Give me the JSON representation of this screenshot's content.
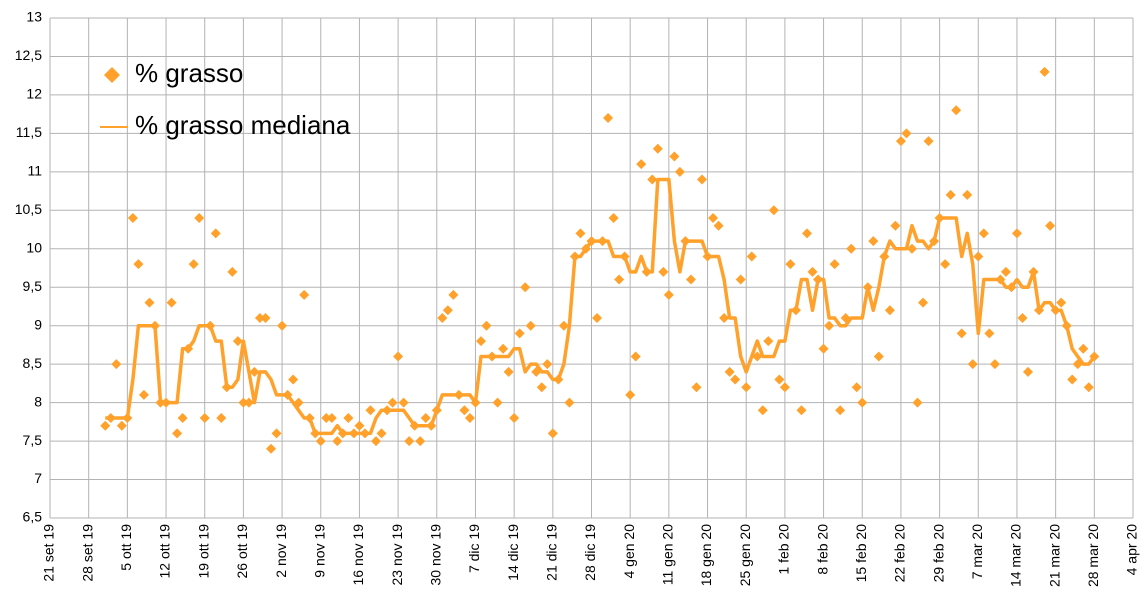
{
  "chart_data": {
    "type": "line",
    "x": [
      "2019-10-01",
      "2019-10-02",
      "2019-10-03",
      "2019-10-04",
      "2019-10-05",
      "2019-10-06",
      "2019-10-07",
      "2019-10-08",
      "2019-10-09",
      "2019-10-10",
      "2019-10-11",
      "2019-10-12",
      "2019-10-13",
      "2019-10-14",
      "2019-10-15",
      "2019-10-16",
      "2019-10-17",
      "2019-10-18",
      "2019-10-19",
      "2019-10-20",
      "2019-10-21",
      "2019-10-22",
      "2019-10-23",
      "2019-10-24",
      "2019-10-25",
      "2019-10-26",
      "2019-10-27",
      "2019-10-28",
      "2019-10-29",
      "2019-10-30",
      "2019-10-31",
      "2019-11-01",
      "2019-11-02",
      "2019-11-03",
      "2019-11-04",
      "2019-11-05",
      "2019-11-06",
      "2019-11-07",
      "2019-11-08",
      "2019-11-09",
      "2019-11-10",
      "2019-11-11",
      "2019-11-12",
      "2019-11-13",
      "2019-11-14",
      "2019-11-15",
      "2019-11-16",
      "2019-11-17",
      "2019-11-18",
      "2019-11-19",
      "2019-11-20",
      "2019-11-21",
      "2019-11-22",
      "2019-11-23",
      "2019-11-24",
      "2019-11-25",
      "2019-11-26",
      "2019-11-27",
      "2019-11-28",
      "2019-11-29",
      "2019-11-30",
      "2019-12-01",
      "2019-12-02",
      "2019-12-03",
      "2019-12-04",
      "2019-12-05",
      "2019-12-06",
      "2019-12-07",
      "2019-12-08",
      "2019-12-09",
      "2019-12-10",
      "2019-12-11",
      "2019-12-12",
      "2019-12-13",
      "2019-12-14",
      "2019-12-15",
      "2019-12-16",
      "2019-12-17",
      "2019-12-18",
      "2019-12-19",
      "2019-12-20",
      "2019-12-21",
      "2019-12-22",
      "2019-12-23",
      "2019-12-24",
      "2019-12-25",
      "2019-12-26",
      "2019-12-27",
      "2019-12-28",
      "2019-12-29",
      "2019-12-30",
      "2019-12-31",
      "2020-01-01",
      "2020-01-02",
      "2020-01-03",
      "2020-01-04",
      "2020-01-05",
      "2020-01-06",
      "2020-01-07",
      "2020-01-08",
      "2020-01-09",
      "2020-01-10",
      "2020-01-11",
      "2020-01-12",
      "2020-01-13",
      "2020-01-14",
      "2020-01-15",
      "2020-01-16",
      "2020-01-17",
      "2020-01-18",
      "2020-01-19",
      "2020-01-20",
      "2020-01-21",
      "2020-01-22",
      "2020-01-23",
      "2020-01-24",
      "2020-01-25",
      "2020-01-26",
      "2020-01-27",
      "2020-01-28",
      "2020-01-29",
      "2020-01-30",
      "2020-01-31",
      "2020-02-01",
      "2020-02-02",
      "2020-02-03",
      "2020-02-04",
      "2020-02-05",
      "2020-02-06",
      "2020-02-07",
      "2020-02-08",
      "2020-02-09",
      "2020-02-10",
      "2020-02-11",
      "2020-02-12",
      "2020-02-13",
      "2020-02-14",
      "2020-02-15",
      "2020-02-16",
      "2020-02-17",
      "2020-02-18",
      "2020-02-19",
      "2020-02-20",
      "2020-02-21",
      "2020-02-22",
      "2020-02-23",
      "2020-02-24",
      "2020-02-25",
      "2020-02-26",
      "2020-02-27",
      "2020-02-28",
      "2020-02-29",
      "2020-03-01",
      "2020-03-02",
      "2020-03-03",
      "2020-03-04",
      "2020-03-05",
      "2020-03-06",
      "2020-03-07",
      "2020-03-08",
      "2020-03-09",
      "2020-03-10",
      "2020-03-11",
      "2020-03-12",
      "2020-03-13",
      "2020-03-14",
      "2020-03-15",
      "2020-03-16",
      "2020-03-17",
      "2020-03-18",
      "2020-03-19",
      "2020-03-20",
      "2020-03-21",
      "2020-03-22",
      "2020-03-23",
      "2020-03-24",
      "2020-03-25",
      "2020-03-26",
      "2020-03-27",
      "2020-03-28"
    ],
    "series": [
      {
        "name": "% grasso",
        "type": "scatter",
        "color": "#ffa12b",
        "values": [
          7.7,
          7.8,
          8.5,
          7.7,
          7.8,
          10.4,
          9.8,
          8.1,
          9.3,
          9.0,
          8.0,
          8.0,
          9.3,
          7.6,
          7.8,
          8.7,
          9.8,
          10.4,
          7.8,
          9.0,
          10.2,
          7.8,
          8.2,
          9.7,
          8.8,
          8.0,
          8.0,
          8.4,
          9.1,
          9.1,
          7.4,
          7.6,
          9.0,
          8.1,
          8.3,
          8.0,
          9.4,
          7.8,
          7.6,
          7.5,
          7.8,
          7.8,
          7.5,
          7.6,
          7.8,
          7.6,
          7.7,
          7.6,
          7.9,
          7.5,
          7.6,
          7.9,
          8.0,
          8.6,
          8.0,
          7.5,
          7.7,
          7.5,
          7.8,
          7.7,
          7.9,
          9.1,
          9.2,
          9.4,
          8.1,
          7.9,
          7.8,
          8.0,
          8.8,
          9.0,
          8.6,
          8.0,
          8.7,
          8.4,
          7.8,
          8.9,
          9.5,
          9.0,
          8.4,
          8.2,
          8.5,
          7.6,
          8.3,
          9.0,
          8.0,
          9.9,
          10.2,
          10.0,
          10.1,
          9.1,
          10.1,
          11.7,
          10.4,
          9.6,
          9.9,
          8.1,
          8.6,
          11.1,
          9.7,
          10.9,
          11.3,
          9.7,
          9.4,
          11.2,
          11.0,
          10.1,
          9.6,
          8.2,
          10.9,
          9.9,
          10.4,
          10.3,
          9.1,
          8.4,
          8.3,
          9.6,
          8.2,
          9.9,
          8.6,
          7.9,
          8.8,
          10.5,
          8.3,
          8.2,
          9.8,
          9.2,
          7.9,
          10.2,
          9.7,
          9.6,
          8.7,
          9.0,
          9.8,
          7.9,
          9.1,
          10.0,
          8.2,
          8.0,
          9.5,
          10.1,
          8.6,
          9.9,
          9.2,
          10.3,
          11.4,
          11.5,
          10.0,
          8.0,
          9.3,
          11.4,
          10.1,
          10.4,
          9.8,
          10.7,
          11.8,
          8.9,
          10.7,
          8.5,
          9.9,
          10.2,
          8.9,
          8.5,
          9.6,
          9.7,
          9.5,
          10.2,
          9.1,
          8.4,
          9.7,
          9.2,
          12.3,
          10.3,
          9.2,
          9.3,
          9.0,
          8.3,
          8.5,
          8.7,
          8.2,
          8.6
        ]
      },
      {
        "name": "% grasso mediana",
        "type": "line",
        "color": "#ffa12b",
        "values": [
          7.8,
          7.8,
          7.8,
          7.8,
          7.8,
          8.3,
          9.0,
          9.0,
          9.0,
          9.0,
          8.0,
          8.0,
          8.0,
          8.0,
          8.7,
          8.7,
          8.8,
          9.0,
          9.0,
          9.0,
          8.8,
          8.8,
          8.2,
          8.2,
          8.3,
          8.8,
          8.4,
          8.0,
          8.4,
          8.4,
          8.3,
          8.1,
          8.1,
          8.1,
          8.0,
          7.9,
          7.8,
          7.8,
          7.6,
          7.6,
          7.6,
          7.6,
          7.7,
          7.6,
          7.6,
          7.6,
          7.6,
          7.6,
          7.6,
          7.8,
          7.9,
          7.9,
          7.9,
          7.9,
          7.9,
          7.8,
          7.7,
          7.7,
          7.7,
          7.7,
          7.9,
          8.1,
          8.1,
          8.1,
          8.1,
          8.1,
          8.1,
          8.0,
          8.6,
          8.6,
          8.6,
          8.6,
          8.6,
          8.6,
          8.7,
          8.7,
          8.4,
          8.5,
          8.5,
          8.4,
          8.4,
          8.3,
          8.3,
          8.5,
          9.0,
          9.9,
          9.9,
          10.0,
          10.1,
          10.1,
          10.1,
          10.1,
          9.9,
          9.9,
          9.9,
          9.7,
          9.7,
          9.9,
          9.7,
          9.7,
          10.9,
          10.9,
          10.9,
          10.1,
          9.7,
          10.1,
          10.1,
          10.1,
          10.1,
          9.9,
          9.9,
          9.9,
          9.6,
          9.1,
          9.1,
          8.6,
          8.4,
          8.6,
          8.8,
          8.6,
          8.6,
          8.6,
          8.8,
          8.8,
          9.2,
          9.2,
          9.6,
          9.6,
          9.2,
          9.6,
          9.6,
          9.1,
          9.1,
          9.0,
          9.0,
          9.1,
          9.1,
          9.1,
          9.5,
          9.2,
          9.5,
          9.9,
          10.1,
          10.0,
          10.0,
          10.0,
          10.3,
          10.1,
          10.1,
          10.0,
          10.1,
          10.4,
          10.4,
          10.4,
          10.4,
          9.9,
          10.2,
          9.8,
          8.9,
          9.6,
          9.6,
          9.6,
          9.6,
          9.5,
          9.5,
          9.6,
          9.5,
          9.5,
          9.7,
          9.2,
          9.3,
          9.3,
          9.2,
          9.2,
          9.0,
          8.7,
          8.6,
          8.5,
          8.5,
          8.6
        ]
      }
    ],
    "xlim": [
      "2019-09-21",
      "2020-04-04"
    ],
    "xticks": [
      {
        "value": "2019-09-21",
        "label": "21 set 19"
      },
      {
        "value": "2019-09-28",
        "label": "28 set 19"
      },
      {
        "value": "2019-10-05",
        "label": "5 ott 19"
      },
      {
        "value": "2019-10-12",
        "label": "12 ott 19"
      },
      {
        "value": "2019-10-19",
        "label": "19 ott 19"
      },
      {
        "value": "2019-10-26",
        "label": "26 ott 19"
      },
      {
        "value": "2019-11-02",
        "label": "2 nov 19"
      },
      {
        "value": "2019-11-09",
        "label": "9 nov 19"
      },
      {
        "value": "2019-11-16",
        "label": "16 nov 19"
      },
      {
        "value": "2019-11-23",
        "label": "23 nov 19"
      },
      {
        "value": "2019-11-30",
        "label": "30 nov 19"
      },
      {
        "value": "2019-12-07",
        "label": "7 dic 19"
      },
      {
        "value": "2019-12-14",
        "label": "14 dic 19"
      },
      {
        "value": "2019-12-21",
        "label": "21 dic 19"
      },
      {
        "value": "2019-12-28",
        "label": "28 dic 19"
      },
      {
        "value": "2020-01-04",
        "label": "4 gen 20"
      },
      {
        "value": "2020-01-11",
        "label": "11 gen 20"
      },
      {
        "value": "2020-01-18",
        "label": "18 gen 20"
      },
      {
        "value": "2020-01-25",
        "label": "25 gen 20"
      },
      {
        "value": "2020-02-01",
        "label": "1 feb 20"
      },
      {
        "value": "2020-02-08",
        "label": "8 feb 20"
      },
      {
        "value": "2020-02-15",
        "label": "15 feb 20"
      },
      {
        "value": "2020-02-22",
        "label": "22 feb 20"
      },
      {
        "value": "2020-02-29",
        "label": "29 feb 20"
      },
      {
        "value": "2020-03-07",
        "label": "7 mar 20"
      },
      {
        "value": "2020-03-14",
        "label": "14 mar 20"
      },
      {
        "value": "2020-03-21",
        "label": "21 mar 20"
      },
      {
        "value": "2020-03-28",
        "label": "28 mar 20"
      },
      {
        "value": "2020-04-04",
        "label": "4 apr 20"
      }
    ],
    "ylim": [
      6.5,
      13
    ],
    "yticks": [
      {
        "value": 6.5,
        "label": "6,5"
      },
      7,
      {
        "value": 7.5,
        "label": "7,5"
      },
      8,
      {
        "value": 8.5,
        "label": "8,5"
      },
      9,
      {
        "value": 9.5,
        "label": "9,5"
      },
      10,
      {
        "value": 10.5,
        "label": "10,5"
      },
      11,
      {
        "value": 11.5,
        "label": "11,5"
      },
      12,
      {
        "value": 12.5,
        "label": "12,5"
      },
      13
    ],
    "grid": true,
    "legend": "upper left"
  }
}
